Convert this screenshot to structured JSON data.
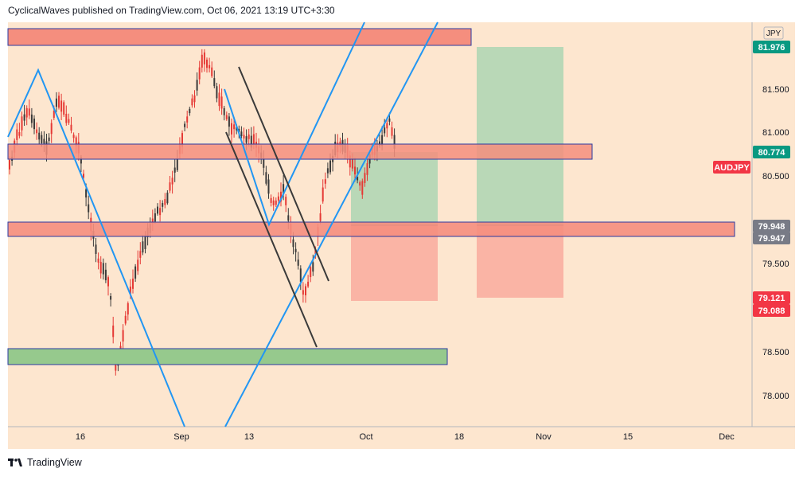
{
  "header": {
    "publisher_line": "CyclicalWaves published on TradingView.com, Oct 06, 2021 13:19 UTC+3:30"
  },
  "footer": {
    "brand": "TradingView",
    "logo_icon": "tradingview-logo-icon"
  },
  "chart_data": {
    "type": "candlestick",
    "symbol_label": "AUDJPY",
    "currency_label": "JPY",
    "x_tick_labels": [
      "16",
      "Sep",
      "13",
      "Oct",
      "18",
      "Nov",
      "15",
      "Dec"
    ],
    "y_tick_labels": [
      "81.500",
      "81.000",
      "80.500",
      "79.500",
      "78.500",
      "78.000"
    ],
    "ylim": [
      77.75,
      82.15
    ],
    "price_badges": [
      {
        "label": "81.976",
        "value": 81.976,
        "color": "#089981"
      },
      {
        "label": "80.774",
        "value": 80.774,
        "color": "#089981"
      },
      {
        "label": "79.948",
        "value": 79.948,
        "color": "#787b86"
      },
      {
        "label": "79.947",
        "value": 79.947,
        "color": "#787b86"
      },
      {
        "label": "79.121",
        "value": 79.121,
        "color": "#f23645"
      },
      {
        "label": "79.088",
        "value": 79.088,
        "color": "#f23645"
      }
    ],
    "colors": {
      "background": "#fde6cf",
      "zone_red": "#f58e7e",
      "zone_green": "#96c98d",
      "zone_border": "#2b3aa0",
      "trend_line_blue": "#2196f3",
      "channel_line": "#3a3a3a",
      "candle_up": "#3a3a3a",
      "candle_down": "#e53935",
      "target_green": "#a8d5b0",
      "stop_red": "#f9a89a"
    }
  }
}
